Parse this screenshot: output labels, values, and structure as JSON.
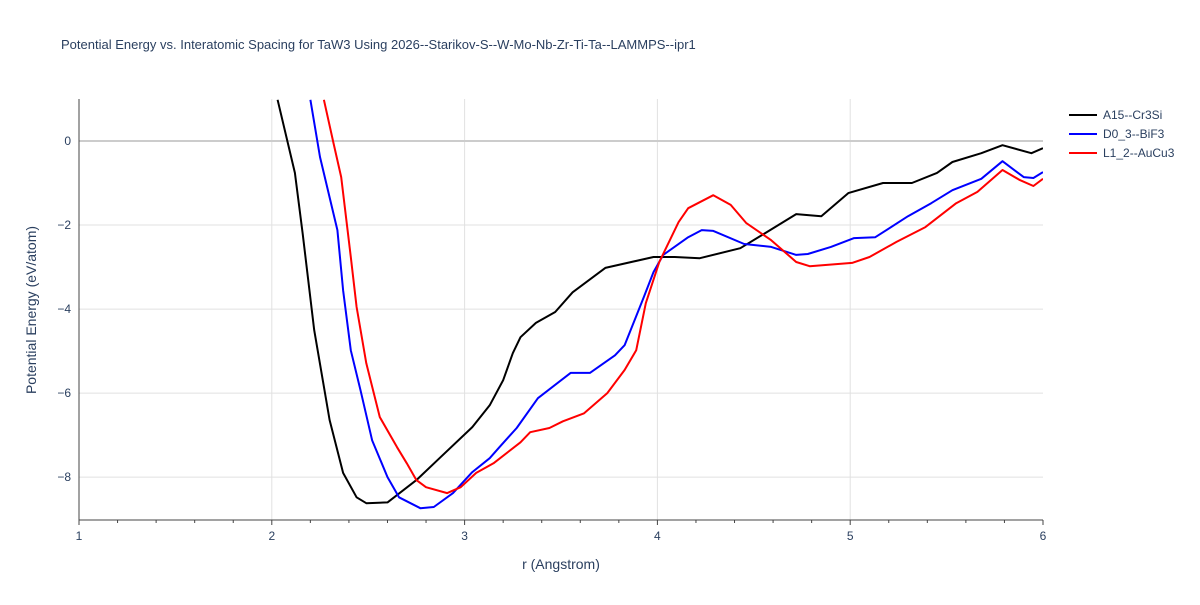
{
  "chart_data": {
    "type": "line",
    "title": "Potential Energy vs. Interatomic Spacing for TaW3 Using 2026--Starikov-S--W-Mo-Nb-Zr-Ti-Ta--LAMMPS--ipr1",
    "xlabel": "r (Angstrom)",
    "ylabel": "Potential Energy (eV/atom)",
    "xlim": [
      1,
      6
    ],
    "ylim": [
      -9.02,
      1
    ],
    "xticks": [
      1,
      2,
      3,
      4,
      5,
      6
    ],
    "xtick_labels": [
      "1",
      "2",
      "3",
      "4",
      "5",
      "6"
    ],
    "yticks": [
      0,
      -2,
      -4,
      -6,
      -8
    ],
    "ytick_labels": [
      "0",
      "−2",
      "−4",
      "−6",
      "−8"
    ],
    "grid": true,
    "legend_position": "top-right",
    "series": [
      {
        "name": "A15--Cr3Si",
        "color": "#000000",
        "x": [
          2.03,
          2.12,
          2.16,
          2.22,
          2.3,
          2.37,
          2.44,
          2.49,
          2.6,
          2.75,
          2.87,
          3.04,
          3.13,
          3.2,
          3.25,
          3.29,
          3.37,
          3.47,
          3.56,
          3.73,
          3.98,
          4.09,
          4.22,
          4.43,
          4.56,
          4.72,
          4.85,
          4.99,
          5.17,
          5.32,
          5.45,
          5.53,
          5.68,
          5.79,
          5.94,
          6.0
        ],
        "y": [
          0.98,
          -0.76,
          -2.19,
          -4.5,
          -6.64,
          -7.9,
          -8.48,
          -8.62,
          -8.6,
          -8.07,
          -7.55,
          -6.81,
          -6.29,
          -5.69,
          -5.05,
          -4.67,
          -4.33,
          -4.07,
          -3.6,
          -3.02,
          -2.76,
          -2.76,
          -2.79,
          -2.55,
          -2.19,
          -1.74,
          -1.79,
          -1.24,
          -1.0,
          -1.0,
          -0.76,
          -0.5,
          -0.29,
          -0.1,
          -0.29,
          -0.17
        ]
      },
      {
        "name": "D0_3--BiF3",
        "color": "#0000ff",
        "x": [
          2.2,
          2.25,
          2.34,
          2.37,
          2.41,
          2.46,
          2.52,
          2.6,
          2.66,
          2.77,
          2.84,
          2.94,
          3.04,
          3.13,
          3.18,
          3.27,
          3.38,
          3.55,
          3.65,
          3.78,
          3.83,
          3.93,
          3.98,
          4.03,
          4.16,
          4.23,
          4.29,
          4.45,
          4.59,
          4.72,
          4.78,
          4.9,
          5.02,
          5.13,
          5.3,
          5.42,
          5.53,
          5.68,
          5.79,
          5.9,
          5.95,
          6.0
        ],
        "y": [
          0.98,
          -0.38,
          -2.12,
          -3.55,
          -4.98,
          -5.93,
          -7.12,
          -8.0,
          -8.48,
          -8.74,
          -8.71,
          -8.38,
          -7.88,
          -7.55,
          -7.29,
          -6.83,
          -6.12,
          -5.52,
          -5.52,
          -5.1,
          -4.86,
          -3.71,
          -3.12,
          -2.71,
          -2.29,
          -2.12,
          -2.14,
          -2.45,
          -2.52,
          -2.71,
          -2.69,
          -2.52,
          -2.31,
          -2.29,
          -1.79,
          -1.48,
          -1.17,
          -0.9,
          -0.48,
          -0.86,
          -0.88,
          -0.74
        ]
      },
      {
        "name": "L1_2--AuCu3",
        "color": "#ff0000",
        "x": [
          2.27,
          2.32,
          2.36,
          2.41,
          2.44,
          2.49,
          2.56,
          2.65,
          2.7,
          2.75,
          2.8,
          2.91,
          2.98,
          3.06,
          3.15,
          3.29,
          3.34,
          3.44,
          3.51,
          3.62,
          3.74,
          3.83,
          3.89,
          3.94,
          4.01,
          4.11,
          4.16,
          4.29,
          4.38,
          4.46,
          4.59,
          4.72,
          4.79,
          5.01,
          5.1,
          5.24,
          5.39,
          5.55,
          5.66,
          5.79,
          5.88,
          5.95,
          6.0
        ],
        "y": [
          0.98,
          -0.05,
          -0.86,
          -2.76,
          -3.95,
          -5.29,
          -6.57,
          -7.29,
          -7.67,
          -8.07,
          -8.24,
          -8.38,
          -8.24,
          -7.9,
          -7.67,
          -7.17,
          -6.93,
          -6.83,
          -6.67,
          -6.48,
          -6.0,
          -5.45,
          -4.98,
          -3.86,
          -2.88,
          -1.93,
          -1.6,
          -1.29,
          -1.52,
          -1.95,
          -2.36,
          -2.88,
          -2.98,
          -2.9,
          -2.76,
          -2.4,
          -2.05,
          -1.48,
          -1.21,
          -0.69,
          -0.93,
          -1.07,
          -0.9
        ]
      }
    ]
  }
}
